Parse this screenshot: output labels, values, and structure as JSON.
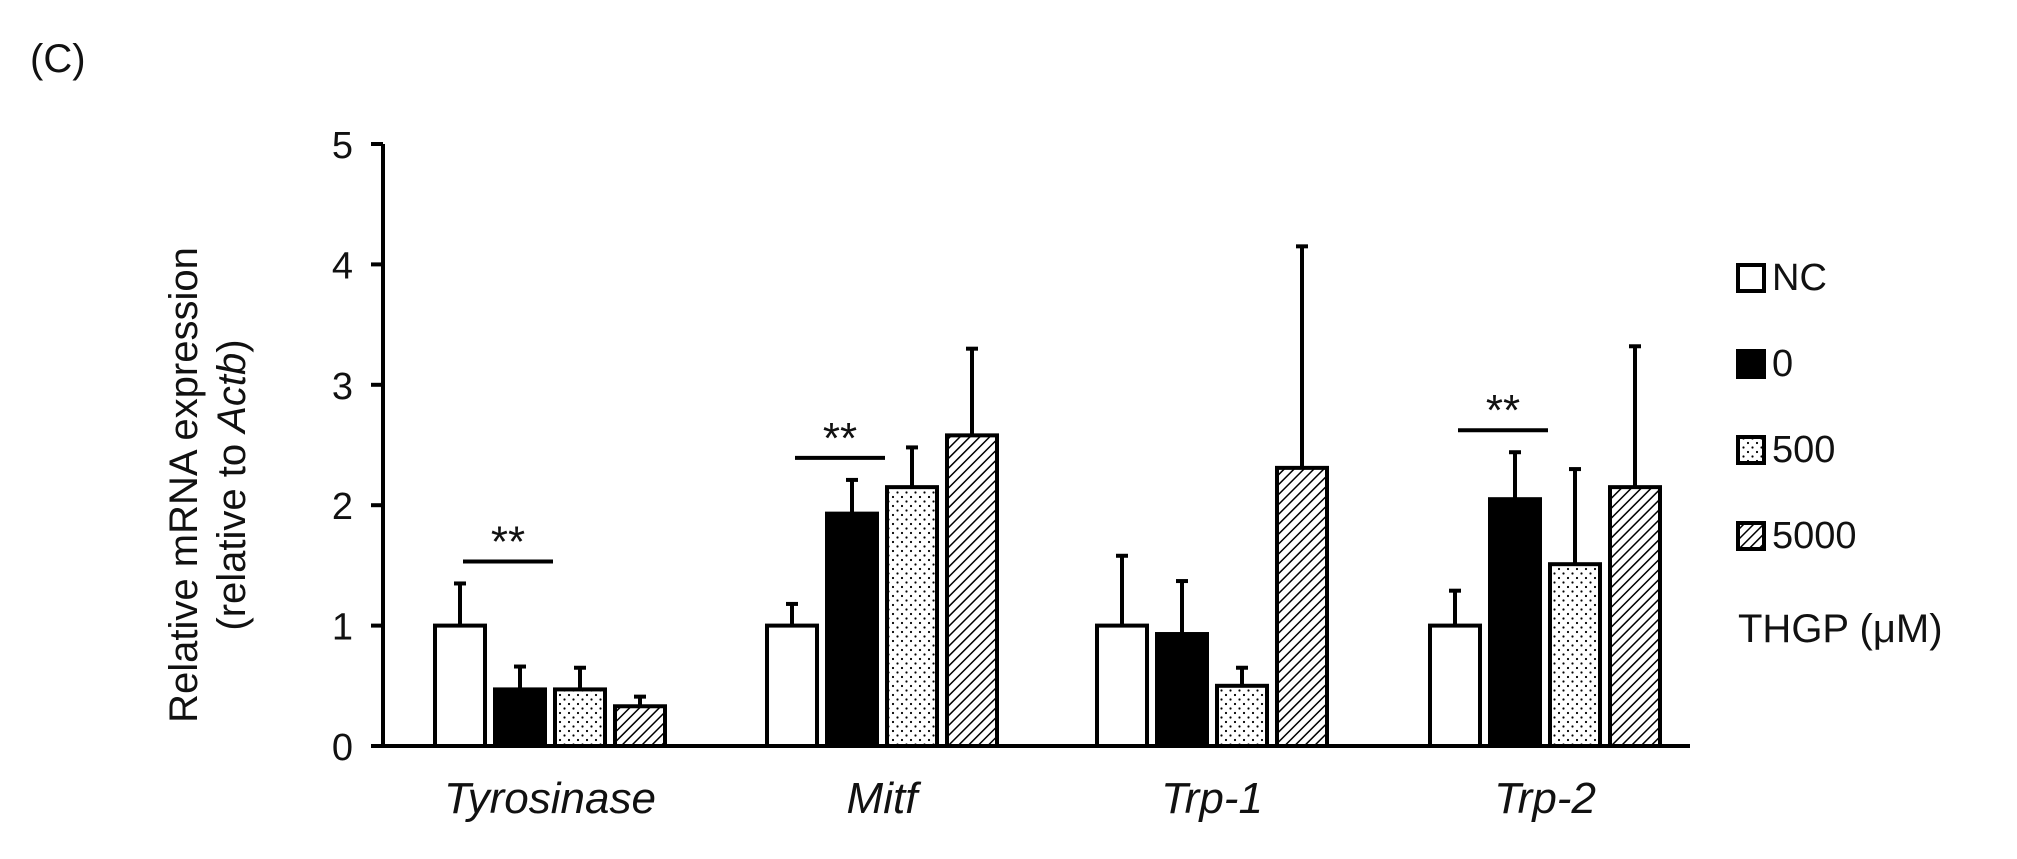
{
  "panel_label": "(C)",
  "chart_data": {
    "type": "bar",
    "ylabel_line1": "Relative mRNA expression",
    "ylabel_line2_prefix": "(relative to ",
    "ylabel_line2_italic": "Actb",
    "ylabel_line2_suffix": ")",
    "ylim": [
      0,
      5
    ],
    "yticks": [
      "0",
      "1",
      "2",
      "3",
      "4",
      "5"
    ],
    "categories": [
      "Tyrosinase",
      "Mitf",
      "Trp-1",
      "Trp-2"
    ],
    "series": [
      {
        "name": "NC",
        "fill": "white",
        "values": [
          1.0,
          1.0,
          1.0,
          1.0
        ],
        "errors": [
          0.35,
          0.18,
          0.58,
          0.29
        ]
      },
      {
        "name": "0",
        "fill": "black",
        "values": [
          0.47,
          1.93,
          0.93,
          2.05
        ],
        "errors": [
          0.19,
          0.28,
          0.44,
          0.39
        ]
      },
      {
        "name": "500",
        "fill": "dots",
        "values": [
          0.47,
          2.15,
          0.5,
          1.51
        ],
        "errors": [
          0.18,
          0.33,
          0.15,
          0.79
        ]
      },
      {
        "name": "5000",
        "fill": "hatch",
        "values": [
          0.33,
          2.58,
          2.31,
          2.15
        ],
        "errors": [
          0.08,
          0.72,
          1.84,
          1.17
        ]
      }
    ],
    "significance": [
      {
        "category": "Tyrosinase",
        "label": "**",
        "between": [
          "NC",
          "0"
        ]
      },
      {
        "category": "Mitf",
        "label": "**",
        "between": [
          "NC",
          "0"
        ]
      },
      {
        "category": "Trp-2",
        "label": "**",
        "between": [
          "NC",
          "0"
        ]
      }
    ],
    "legend_title": "THGP (μM)",
    "legend_position": "right"
  }
}
